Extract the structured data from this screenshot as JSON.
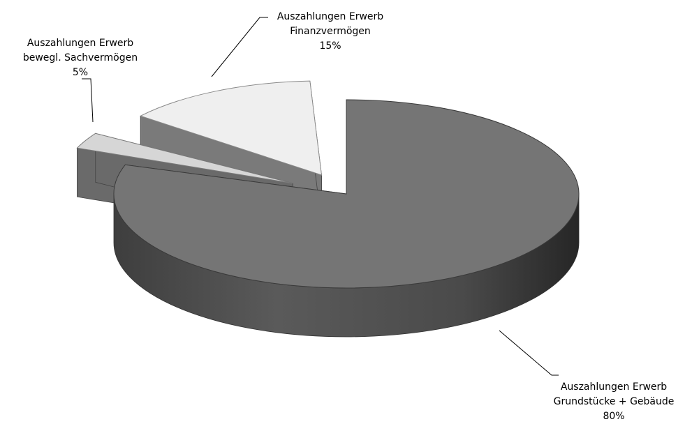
{
  "chart_data": {
    "type": "pie",
    "variant": "3d-exploded",
    "slices": [
      {
        "label_line1": "Auszahlungen Erwerb",
        "label_line2": "Grundstücke + Gebäude",
        "percent_label": "80%",
        "value": 80,
        "color": "#737373"
      },
      {
        "label_line1": "Auszahlungen Erwerb",
        "label_line2": "bewegl. Sachvermögen",
        "percent_label": "5%",
        "value": 5,
        "color": "#d6d6d6"
      },
      {
        "label_line1": "Auszahlungen Erwerb",
        "label_line2": "Finanzvermögen",
        "percent_label": "15%",
        "value": 15,
        "color": "#efefef"
      }
    ],
    "legend": "none",
    "data_labels": "outside-with-leader-lines"
  }
}
